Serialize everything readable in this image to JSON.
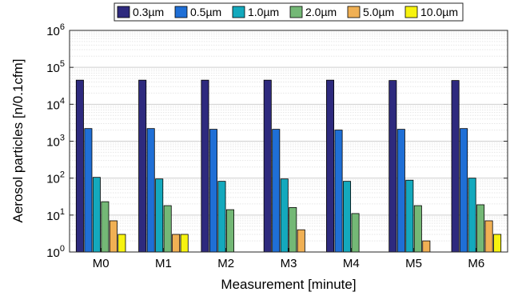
{
  "chart_data": {
    "type": "bar",
    "title": "",
    "xlabel": "Measurement [minute]",
    "ylabel": "Aerosol particles [n/0.1cfm]",
    "y_scale": "log",
    "ylim": [
      1,
      1000000
    ],
    "y_ticks": [
      {
        "base": "10",
        "exp": "0",
        "value": 1
      },
      {
        "base": "10",
        "exp": "1",
        "value": 10
      },
      {
        "base": "10",
        "exp": "2",
        "value": 100
      },
      {
        "base": "10",
        "exp": "3",
        "value": 1000
      },
      {
        "base": "10",
        "exp": "4",
        "value": 10000
      },
      {
        "base": "10",
        "exp": "5",
        "value": 100000
      },
      {
        "base": "10",
        "exp": "6",
        "value": 1000000
      }
    ],
    "grid": true,
    "legend_position": "top",
    "categories": [
      "M0",
      "M1",
      "M2",
      "M3",
      "M4",
      "M5",
      "M6"
    ],
    "series": [
      {
        "name": "0.3µm",
        "color": "#2e2a7e",
        "values": [
          45000,
          45000,
          45000,
          45000,
          45000,
          44000,
          44000
        ]
      },
      {
        "name": "0.5µm",
        "color": "#1f6fd6",
        "values": [
          2200,
          2200,
          2100,
          2100,
          2000,
          2100,
          2200
        ]
      },
      {
        "name": "1.0µm",
        "color": "#14a9bd",
        "values": [
          105,
          95,
          82,
          95,
          82,
          88,
          100
        ]
      },
      {
        "name": "2.0µm",
        "color": "#74b876",
        "values": [
          23,
          18,
          14,
          16,
          11,
          18,
          19
        ]
      },
      {
        "name": "5.0µm",
        "color": "#f0b054",
        "values": [
          7,
          3,
          1,
          4,
          1,
          2,
          7
        ]
      },
      {
        "name": "10.0µm",
        "color": "#f7f30f",
        "values": [
          3,
          3,
          1,
          1,
          1,
          1,
          3
        ]
      }
    ]
  }
}
